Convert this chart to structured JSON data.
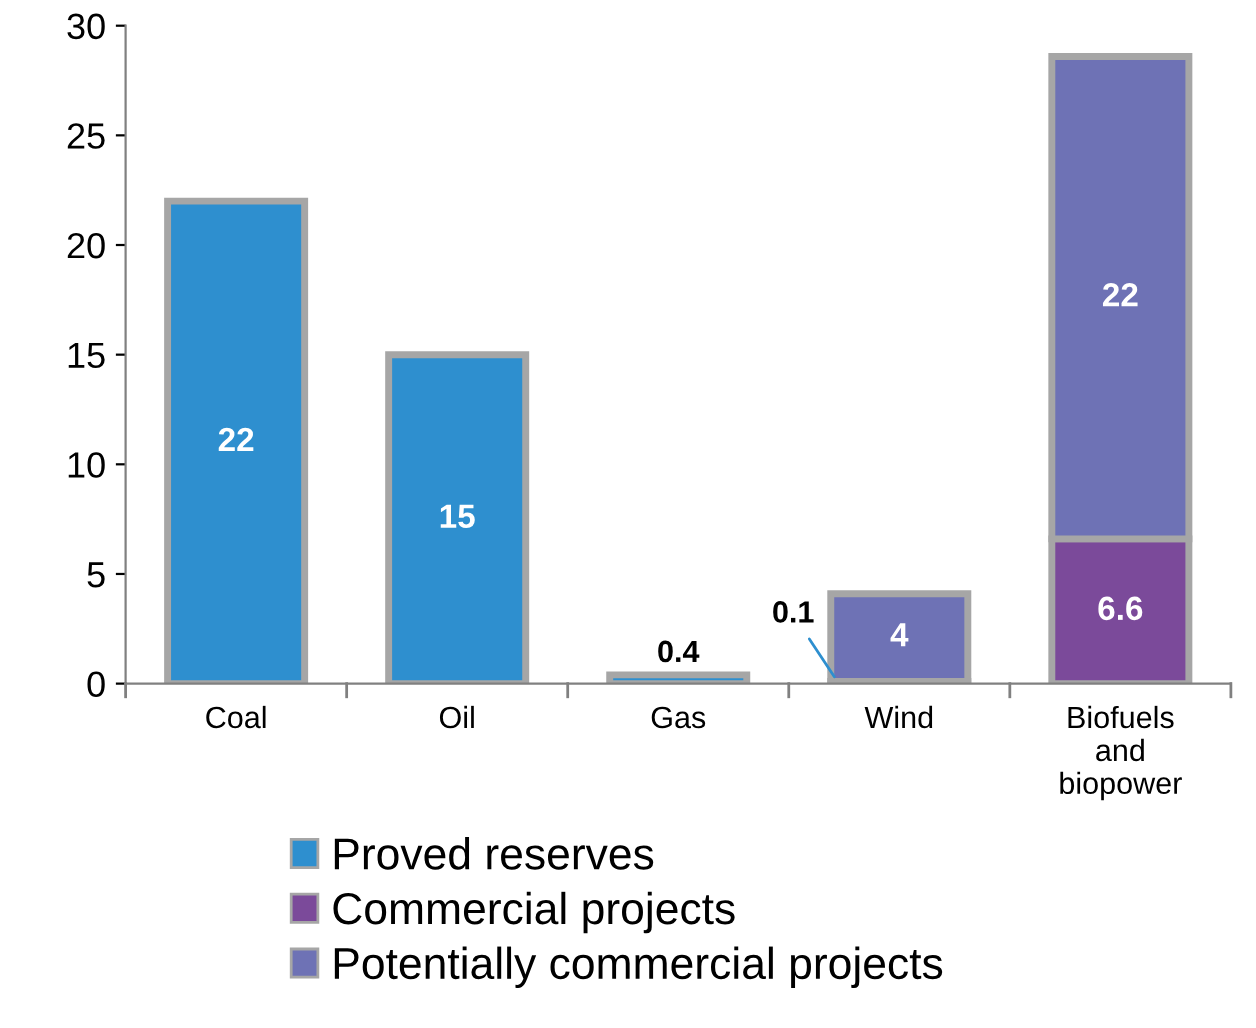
{
  "chart_data": {
    "type": "bar",
    "stacked": true,
    "categories": [
      "Coal",
      "Oil",
      "Gas",
      "Wind",
      "Biofuels\nand\nbiopower"
    ],
    "series": [
      {
        "name": "Proved reserves",
        "color": "#2e8fcf",
        "values": [
          22,
          15,
          0.4,
          0.1,
          null
        ],
        "value_labels": [
          "22",
          "15",
          "0.4",
          "0.1",
          null
        ]
      },
      {
        "name": "Commercial projects",
        "color": "#7b4a9a",
        "values": [
          null,
          null,
          null,
          null,
          6.6
        ],
        "value_labels": [
          null,
          null,
          null,
          null,
          "6.6"
        ]
      },
      {
        "name": "Potentially commercial projects",
        "color": "#6e72b5",
        "values": [
          null,
          null,
          null,
          4,
          22
        ],
        "value_labels": [
          null,
          null,
          null,
          "4",
          "22"
        ]
      }
    ],
    "ylim": [
      0,
      30
    ],
    "yticks": [
      0,
      5,
      10,
      15,
      20,
      25,
      30
    ],
    "grid": false,
    "legend": "bottom left"
  }
}
